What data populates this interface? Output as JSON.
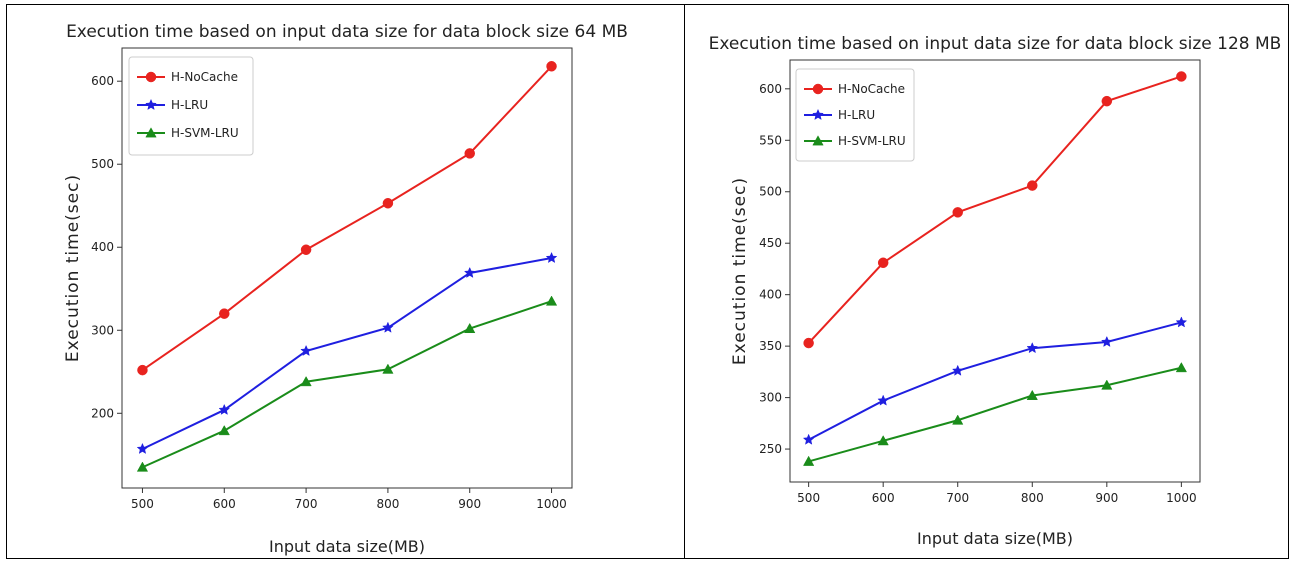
{
  "chart_data": [
    {
      "type": "line",
      "title": "Execution time based on input data size for data block size 64 MB",
      "xlabel": "Input data size(MB)",
      "ylabel": "Execution time(sec)",
      "x": [
        500,
        600,
        700,
        800,
        900,
        1000
      ],
      "xticks": [
        500,
        600,
        700,
        800,
        900,
        1000
      ],
      "yticks": [
        200,
        300,
        400,
        500,
        600
      ],
      "xlim": [
        475,
        1025
      ],
      "ylim": [
        110,
        640
      ],
      "grid": false,
      "legend_position": "top-left",
      "series": [
        {
          "name": "H-NoCache",
          "color": "#e8231f",
          "marker": "circle",
          "values": [
            252,
            320,
            397,
            453,
            513,
            618
          ]
        },
        {
          "name": "H-LRU",
          "color": "#1f1fe0",
          "marker": "star",
          "values": [
            157,
            204,
            275,
            303,
            369,
            387
          ]
        },
        {
          "name": "H-SVM-LRU",
          "color": "#1a8c1a",
          "marker": "triangle",
          "values": [
            135,
            179,
            238,
            253,
            302,
            335
          ]
        }
      ]
    },
    {
      "type": "line",
      "title": "Execution time based on input data size for data block size 128 MB",
      "xlabel": "Input data size(MB)",
      "ylabel": "Execution time(sec)",
      "x": [
        500,
        600,
        700,
        800,
        900,
        1000
      ],
      "xticks": [
        500,
        600,
        700,
        800,
        900,
        1000
      ],
      "yticks": [
        250,
        300,
        350,
        400,
        450,
        500,
        550,
        600
      ],
      "xlim": [
        475,
        1025
      ],
      "ylim": [
        218,
        628
      ],
      "grid": false,
      "legend_position": "top-left",
      "series": [
        {
          "name": "H-NoCache",
          "color": "#e8231f",
          "marker": "circle",
          "values": [
            353,
            431,
            480,
            506,
            588,
            612
          ]
        },
        {
          "name": "H-LRU",
          "color": "#1f1fe0",
          "marker": "star",
          "values": [
            259,
            297,
            326,
            348,
            354,
            373
          ]
        },
        {
          "name": "H-SVM-LRU",
          "color": "#1a8c1a",
          "marker": "triangle",
          "values": [
            238,
            258,
            278,
            302,
            312,
            329
          ]
        }
      ]
    }
  ]
}
